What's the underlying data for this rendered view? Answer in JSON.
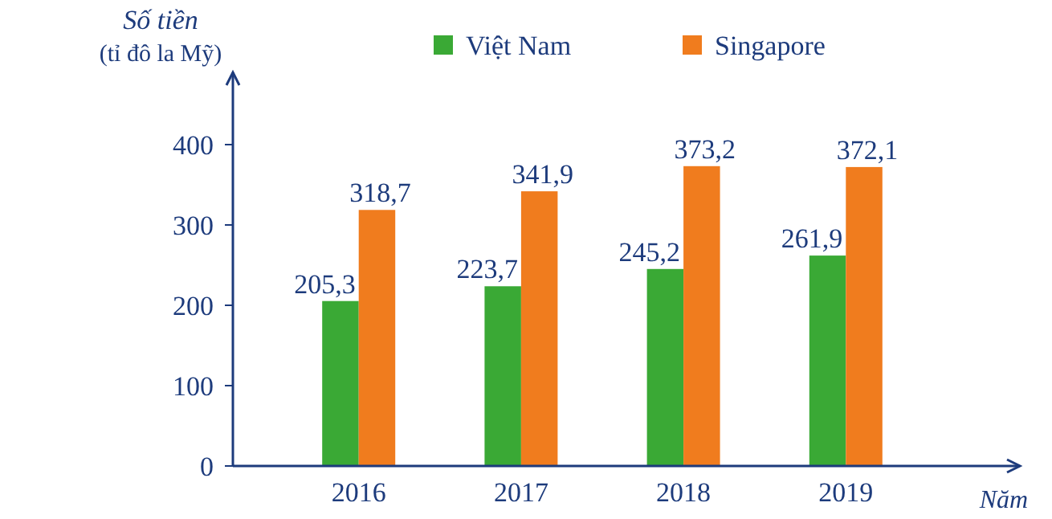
{
  "chart_data": {
    "type": "bar",
    "categories": [
      "2016",
      "2017",
      "2018",
      "2019"
    ],
    "series": [
      {
        "name": "Việt Nam",
        "color": "#3aa935",
        "values": [
          205.3,
          223.7,
          245.2,
          261.9
        ],
        "value_labels": [
          "205,3",
          "223,7",
          "245,2",
          "261,9"
        ]
      },
      {
        "name": "Singapore",
        "color": "#f07c1e",
        "values": [
          318.7,
          341.9,
          373.2,
          372.1
        ],
        "value_labels": [
          "318,7",
          "341,9",
          "373,2",
          "372,1"
        ]
      }
    ],
    "ylabel": "Số tiền\n(tỉ đô la Mỹ)",
    "xlabel": "Năm",
    "ylim": [
      0,
      490
    ],
    "yticks": [
      0,
      100,
      200,
      300,
      400
    ],
    "grid": false,
    "legend": "top"
  }
}
